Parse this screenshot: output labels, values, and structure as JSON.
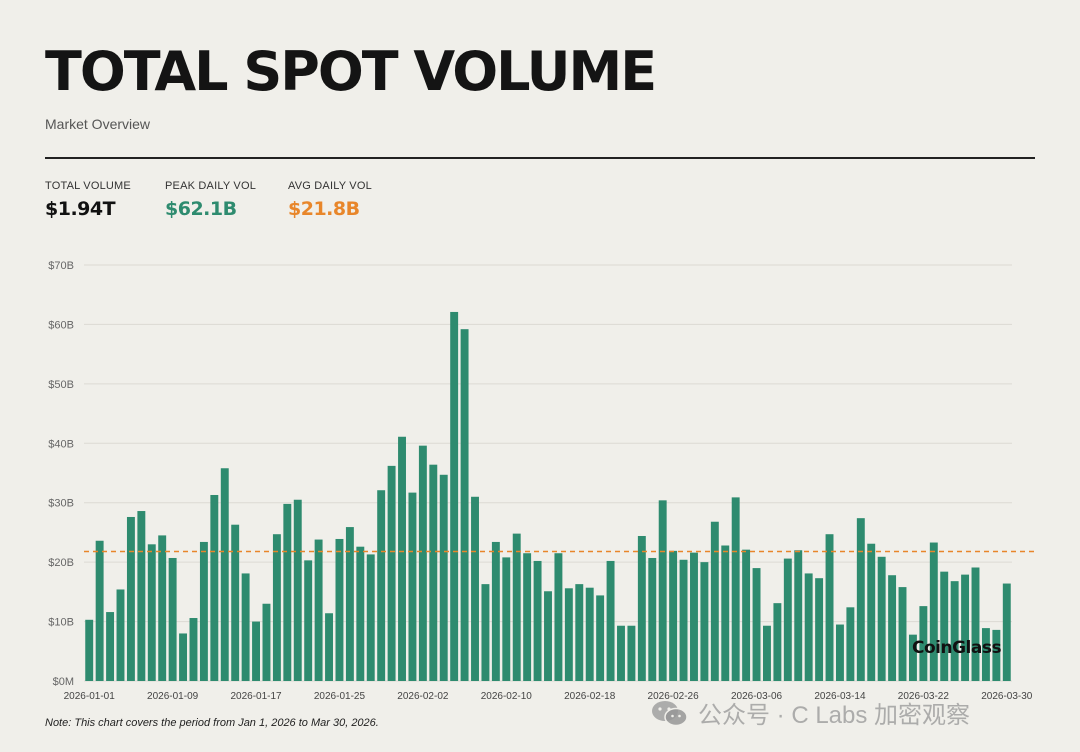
{
  "header": {
    "title": "TOTAL SPOT VOLUME",
    "subtitle": "Market Overview"
  },
  "stats": [
    {
      "label": "TOTAL VOLUME",
      "value": "$1.94T",
      "color": "#111111"
    },
    {
      "label": "PEAK DAILY VOL",
      "value": "$62.1B",
      "color": "#2e8b6f"
    },
    {
      "label": "AVG DAILY VOL",
      "value": "$21.8B",
      "color": "#e8862a"
    }
  ],
  "note": "Note: This chart covers the period from Jan 1, 2026 to Mar 30, 2026.",
  "brand": "CoinGlass",
  "watermark": "公众号 · C Labs 加密观察",
  "colors": {
    "bar": "#2e8b6f",
    "avg_line": "#e8862a",
    "grid": "#dcdad3"
  },
  "chart_data": {
    "type": "bar",
    "start_date": "2026-01-01",
    "end_date": "2026-03-30",
    "x_tick_labels": [
      "2026-01-01",
      "2026-01-09",
      "2026-01-17",
      "2026-01-25",
      "2026-02-02",
      "2026-02-10",
      "2026-02-18",
      "2026-02-26",
      "2026-03-06",
      "2026-03-14",
      "2026-03-22",
      "2026-03-30"
    ],
    "y_tick_labels": [
      "$0M",
      "$10B",
      "$20B",
      "$30B",
      "$40B",
      "$50B",
      "$60B",
      "$70B"
    ],
    "ylim": [
      0,
      70
    ],
    "y_unit": "B USD",
    "average": 21.8,
    "grid": true,
    "values": [
      10.3,
      23.6,
      11.6,
      15.4,
      27.6,
      28.6,
      23.0,
      24.5,
      20.7,
      8.0,
      10.6,
      23.4,
      31.3,
      35.8,
      26.3,
      18.1,
      10.0,
      13.0,
      24.7,
      29.8,
      30.5,
      20.3,
      23.8,
      11.4,
      23.9,
      25.9,
      22.6,
      21.3,
      32.1,
      36.2,
      41.1,
      31.7,
      39.6,
      36.4,
      34.7,
      62.1,
      59.2,
      31.0,
      16.3,
      23.4,
      20.8,
      24.8,
      21.5,
      20.2,
      15.1,
      21.5,
      15.6,
      16.3,
      15.7,
      14.4,
      20.2,
      9.3,
      9.3,
      24.4,
      20.7,
      30.4,
      21.9,
      20.4,
      21.6,
      20.0,
      26.8,
      22.8,
      30.9,
      22.1,
      19.0,
      9.3,
      13.1,
      20.6,
      22.0,
      18.1,
      17.3,
      24.7,
      9.5,
      12.4,
      27.4,
      23.1,
      20.9,
      17.8,
      15.8,
      7.8,
      12.6,
      23.3,
      18.4,
      16.8,
      17.9,
      19.1,
      8.9,
      8.6,
      16.4
    ]
  }
}
